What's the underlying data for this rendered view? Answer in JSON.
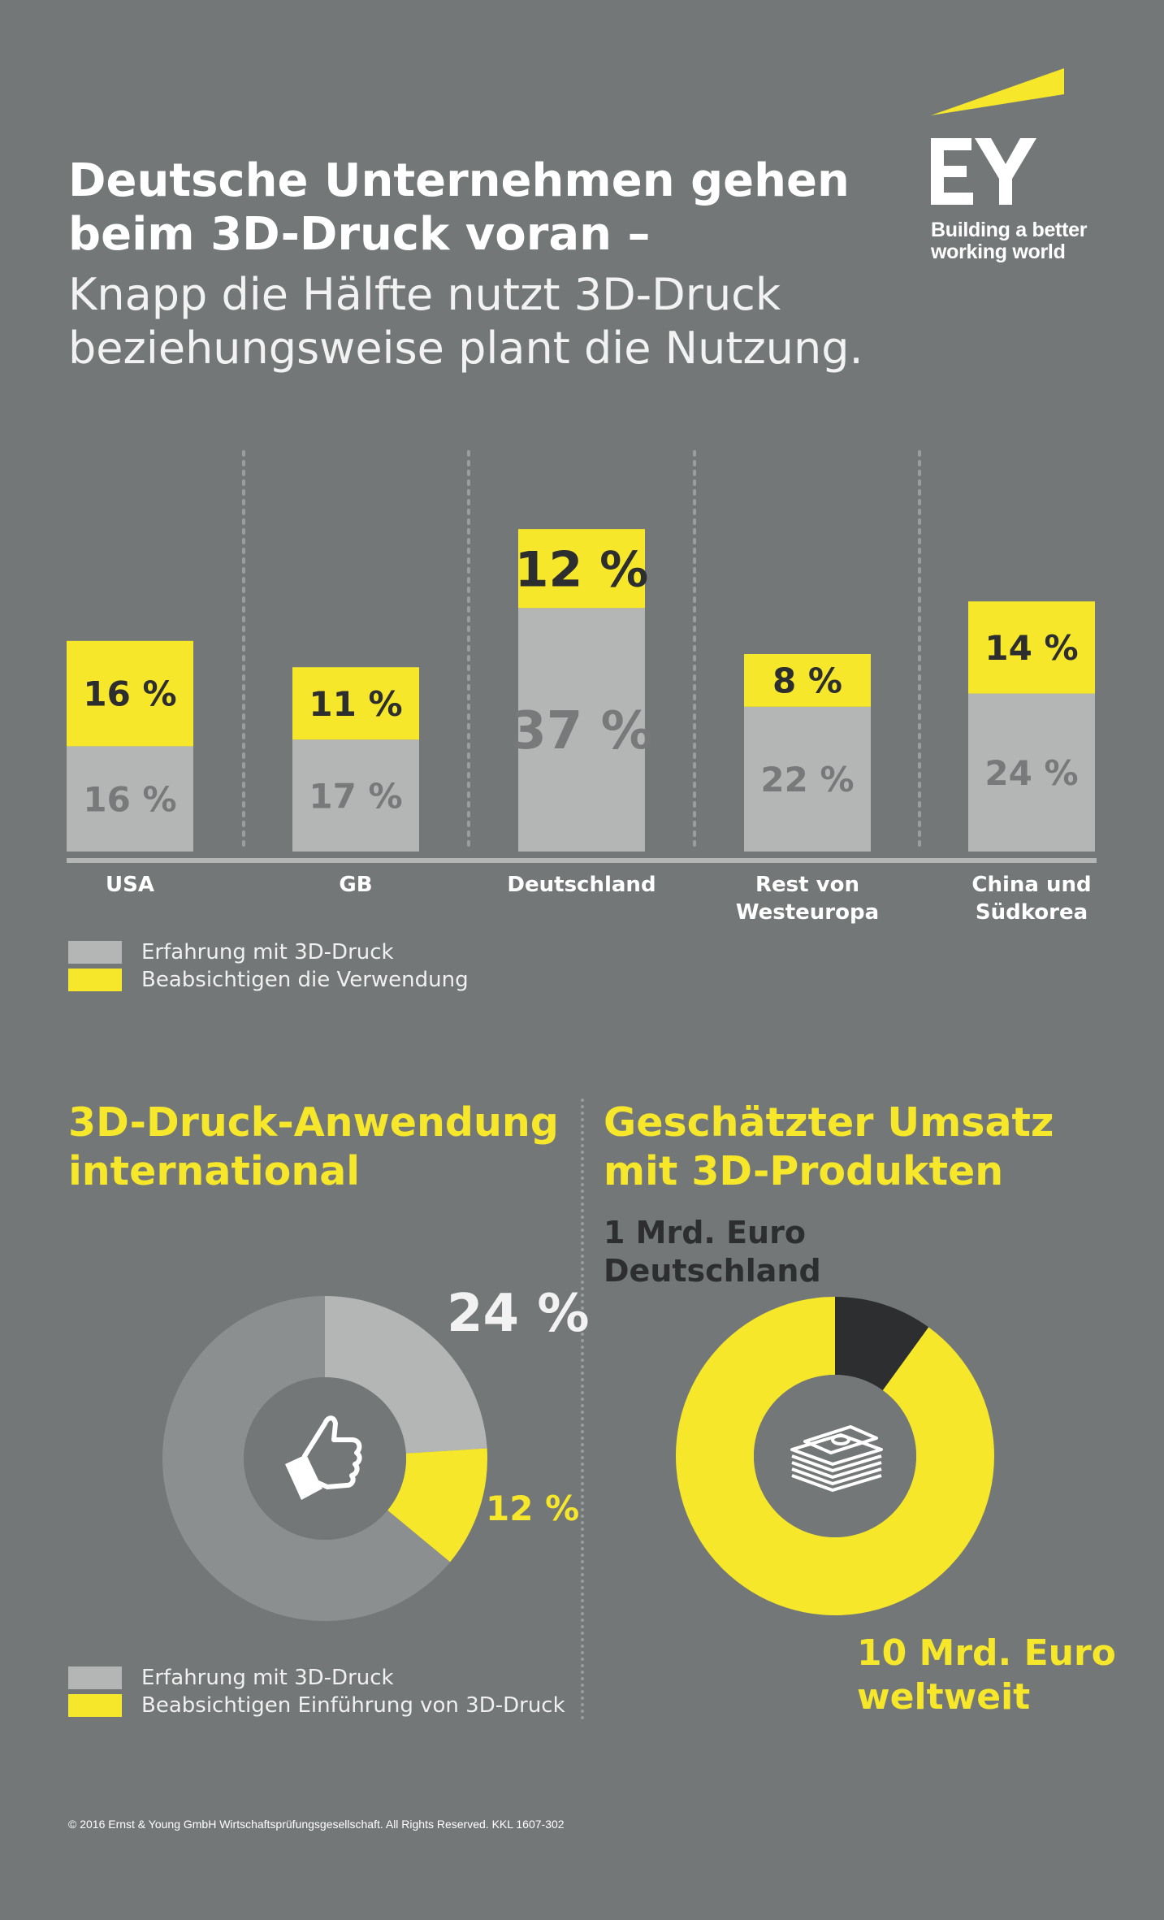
{
  "header": {
    "title_bold": "Deutsche Unternehmen gehen\nbeim 3D-Druck voran –",
    "title_light": "Knapp die Hälfte nutzt 3D-Druck\nbeziehungsweise plant die Nutzung."
  },
  "logo": {
    "mark": "EY",
    "tagline": "Building a better\nworking world"
  },
  "colors": {
    "background": "#737778",
    "yellow": "#f6e72a",
    "light_gray": "#b4b6b6",
    "mid_gray": "#8c8f90",
    "dark": "#2d2e2f",
    "white": "#ffffff"
  },
  "chart_data": [
    {
      "type": "bar",
      "stacked": true,
      "categories": [
        "USA",
        "GB",
        "Deutschland",
        "Rest von\nWesteuropa",
        "China und\nSüdkorea"
      ],
      "series": [
        {
          "name": "Erfahrung mit 3D-Druck",
          "color": "#b4b6b6",
          "values": [
            16,
            17,
            37,
            22,
            24
          ]
        },
        {
          "name": "Beabsichtigen die Verwendung",
          "color": "#f6e72a",
          "values": [
            16,
            11,
            12,
            8,
            14
          ]
        }
      ],
      "value_labels": {
        "gray": [
          "16 %",
          "17 %",
          "37 %",
          "22 %",
          "24 %"
        ],
        "yellow": [
          "16 %",
          "11 %",
          "12 %",
          "8 %",
          "14 %"
        ]
      },
      "legend": [
        "Erfahrung mit 3D-Druck",
        "Beabsichtigen die Verwendung"
      ],
      "ylim": [
        0,
        50
      ],
      "grid": false
    },
    {
      "type": "pie",
      "title": "3D-Druck-Anwendung\ninternational",
      "slices": [
        {
          "name": "Erfahrung mit 3D-Druck",
          "value": 24,
          "label": "24 %",
          "color": "#b4b6b6"
        },
        {
          "name": "Beabsichtigen Einführung von 3D-Druck",
          "value": 12,
          "label": "12 %",
          "color": "#f6e72a"
        },
        {
          "name": "",
          "value": 64,
          "color": "#8c8f90"
        }
      ],
      "legend": [
        "Erfahrung mit 3D-Druck",
        "Beabsichtigen Einführung von 3D-Druck"
      ],
      "center_icon": "thumbs-up-icon"
    },
    {
      "type": "pie",
      "title": "Geschätzter Umsatz\nmit 3D-Produkten",
      "slices": [
        {
          "name": "Deutschland",
          "value": 1,
          "label": "1 Mrd. Euro\nDeutschland",
          "color": "#2d2e2f"
        },
        {
          "name": "weltweit",
          "value": 9,
          "label": "10 Mrd. Euro\nweltweit",
          "color": "#f6e72a"
        }
      ],
      "center_icon": "money-stack-icon"
    }
  ],
  "legend_bar": {
    "gray": "Erfahrung mit 3D-Druck",
    "yellow": "Beabsichtigen die Verwendung"
  },
  "section_left": {
    "title": "3D-Druck-Anwendung\ninternational",
    "pct_gray": "24 %",
    "pct_yellow": "12 %",
    "legend_gray": "Erfahrung mit 3D-Druck",
    "legend_yellow": "Beabsichtigen Einführung von 3D-Druck"
  },
  "section_right": {
    "title": "Geschätzter Umsatz\nmit 3D-Produkten",
    "de_label": "1 Mrd. Euro\nDeutschland",
    "world_label": "10 Mrd. Euro\nweltweit"
  },
  "footer": "© 2016 Ernst & Young GmbH Wirtschaftsprüfungsgesellschaft. All Rights Reserved. KKL 1607-302"
}
